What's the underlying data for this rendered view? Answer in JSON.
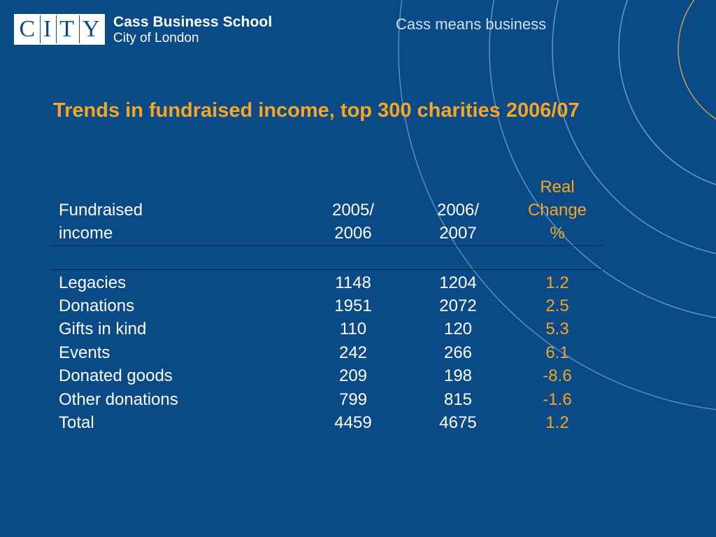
{
  "header": {
    "logo_letters": [
      "C",
      "I",
      "T",
      "Y"
    ],
    "school_name": "Cass Business School",
    "school_sub": "City of London",
    "tagline": "Cass means business"
  },
  "slide": {
    "title": "Trends in fundraised income, top 300 charities 2006/07"
  },
  "table": {
    "columns": {
      "label": [
        "Fundraised",
        "income"
      ],
      "col1": [
        "2005/",
        "2006"
      ],
      "col2": [
        "2006/",
        "2007"
      ],
      "col3": [
        "Real",
        "Change",
        "%"
      ]
    },
    "rows": [
      {
        "label": "Legacies",
        "v1": "1148",
        "v2": "1204",
        "v3": "1.2"
      },
      {
        "label": "Donations",
        "v1": "1951",
        "v2": "2072",
        "v3": "2.5"
      },
      {
        "label": "Gifts in kind",
        "v1": "110",
        "v2": "120",
        "v3": "5.3"
      },
      {
        "label": "Events",
        "v1": "242",
        "v2": "266",
        "v3": "6.1"
      },
      {
        "label": "Donated goods",
        "v1": "209",
        "v2": "198",
        "v3": "-8.6"
      },
      {
        "label": "Other donations",
        "v1": "799",
        "v2": "815",
        "v3": "-1.6"
      },
      {
        "label": "Total",
        "v1": "4459",
        "v2": "4675",
        "v3": "1.2"
      }
    ]
  },
  "colors": {
    "background": "#0a4a86",
    "accent": "#f6a623",
    "text": "#ffffff"
  }
}
